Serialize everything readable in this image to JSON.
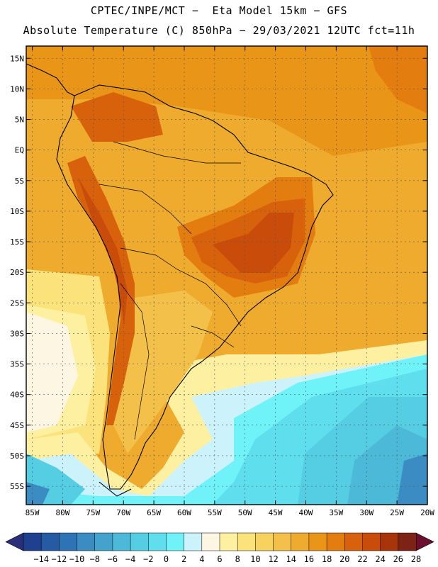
{
  "header": {
    "line1": "CPTEC/INPE/MCT −  Eta Model 15km − GFS",
    "line2": "Absolute Temperature (C) 850hPa − 29/03/2021 12UTC fct=11h"
  },
  "axes": {
    "lat_labels": [
      "15N",
      "10N",
      "5N",
      "EQ",
      "5S",
      "10S",
      "15S",
      "20S",
      "25S",
      "30S",
      "35S",
      "40S",
      "45S",
      "50S",
      "55S"
    ],
    "lat_values": [
      15,
      10,
      5,
      0,
      -5,
      -10,
      -15,
      -20,
      -25,
      -30,
      -35,
      -40,
      -45,
      -50,
      -55
    ],
    "lon_labels": [
      "85W",
      "80W",
      "75W",
      "70W",
      "65W",
      "60W",
      "55W",
      "50W",
      "45W",
      "40W",
      "35W",
      "30W",
      "25W",
      "20W"
    ],
    "lon_values": [
      -85,
      -80,
      -75,
      -70,
      -65,
      -60,
      -55,
      -50,
      -45,
      -40,
      -35,
      -30,
      -25,
      -20
    ],
    "lat_range": [
      -58,
      17
    ],
    "lon_range": [
      -86,
      -20
    ]
  },
  "colorbar": {
    "levels": [
      "-14",
      "-12",
      "-10",
      "-8",
      "-6",
      "-4",
      "-2",
      "0",
      "2",
      "4",
      "6",
      "8",
      "10",
      "12",
      "14",
      "16",
      "18",
      "20",
      "22",
      "24",
      "26",
      "28"
    ],
    "colors": [
      "#1f3f8f",
      "#255aa5",
      "#2e73b5",
      "#3a8cc2",
      "#44a3cd",
      "#4db9d8",
      "#55cde3",
      "#5fdfee",
      "#6ff2f8",
      "#ccf2fb",
      "#fdf6e3",
      "#fdf0a0",
      "#fbe27a",
      "#f8d25e",
      "#f3c04a",
      "#eeab2e",
      "#e99618",
      "#e37d10",
      "#d8620c",
      "#c94c0a",
      "#a8350a",
      "#7d2314"
    ],
    "under_color": "#2a2f7a",
    "over_color": "#6b0f2f"
  },
  "colors": {
    "land_warm": "#e99618",
    "land_hot": "#d8620c",
    "ocean_north": "#eeab2e",
    "ocean_south_cold": "#4db9d8",
    "ocean_south_mid": "#5fdfee",
    "pale": "#fdf6e3"
  }
}
